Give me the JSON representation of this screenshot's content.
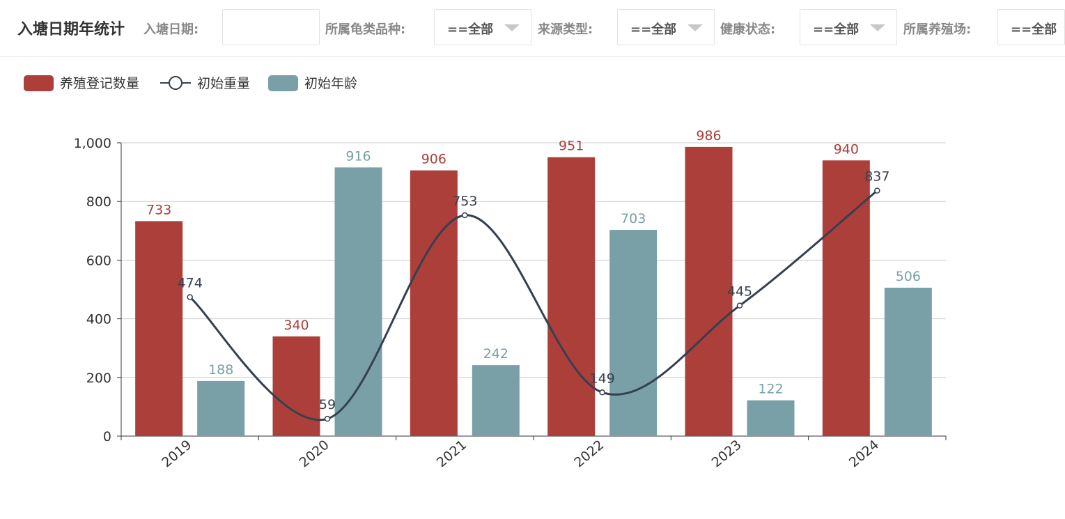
{
  "header": {
    "title": "入塘日期年统计",
    "filters": [
      {
        "label": "入塘日期:",
        "value": ""
      },
      {
        "label": "所属龟类品种:",
        "value": "==全部"
      },
      {
        "label": "来源类型:",
        "value": "==全部"
      },
      {
        "label": "健康状态:",
        "value": "==全部"
      },
      {
        "label": "所属养殖场:",
        "value": "==全部"
      }
    ]
  },
  "colors": {
    "bar1": "#ad3f3a",
    "bar2": "#78a0a6",
    "line": "#35404f",
    "axis": "#333333",
    "grid": "#cccccc"
  },
  "chart_data": {
    "type": "bar",
    "categories": [
      "2019",
      "2020",
      "2021",
      "2022",
      "2023",
      "2024"
    ],
    "ylim": [
      0,
      1000
    ],
    "yticks": [
      0,
      200,
      400,
      600,
      800,
      1000
    ],
    "ytick_labels": [
      "0",
      "200",
      "400",
      "600",
      "800",
      "1,000"
    ],
    "legend_position": "top-left",
    "grid": true,
    "series": [
      {
        "name": "养殖登记数量",
        "type": "bar",
        "values": [
          733,
          340,
          906,
          951,
          986,
          940
        ]
      },
      {
        "name": "初始重量",
        "type": "line",
        "smooth": true,
        "values": [
          474,
          59,
          753,
          149,
          445,
          837
        ]
      },
      {
        "name": "初始年龄",
        "type": "bar",
        "values": [
          188,
          916,
          242,
          703,
          122,
          506
        ]
      }
    ]
  }
}
